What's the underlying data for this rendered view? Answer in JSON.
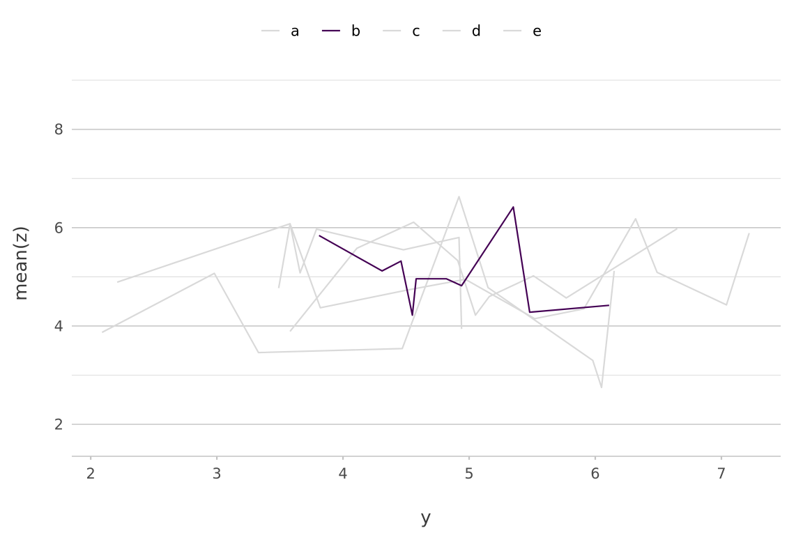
{
  "chart_data": {
    "type": "line",
    "xlabel": "y",
    "ylabel": "mean(z)",
    "xlim": [
      1.85,
      7.47
    ],
    "ylim": [
      1.35,
      9.1
    ],
    "xticks": [
      2,
      3,
      4,
      5,
      6,
      7
    ],
    "yticks": [
      2,
      4,
      6,
      8
    ],
    "yminor": [
      3,
      5,
      7,
      9
    ],
    "grid": true,
    "legend_position": "top",
    "highlight_color": "#440154",
    "muted_color": "#d9d9d9",
    "series": [
      {
        "name": "a",
        "highlighted": false,
        "points": [
          [
            3.49,
            4.77
          ],
          [
            3.58,
            6.08
          ],
          [
            3.82,
            4.37
          ],
          [
            4.49,
            4.72
          ],
          [
            4.97,
            4.95
          ],
          [
            5.52,
            4.15
          ],
          [
            5.91,
            4.35
          ],
          [
            6.32,
            6.18
          ],
          [
            6.49,
            5.09
          ],
          [
            7.04,
            4.43
          ],
          [
            7.22,
            5.89
          ]
        ]
      },
      {
        "name": "b",
        "highlighted": true,
        "points": [
          [
            3.81,
            5.84
          ],
          [
            4.31,
            5.12
          ],
          [
            4.46,
            5.32
          ],
          [
            4.55,
            4.22
          ],
          [
            4.58,
            4.96
          ],
          [
            4.82,
            4.96
          ],
          [
            4.94,
            4.82
          ],
          [
            5.35,
            6.42
          ],
          [
            5.48,
            4.28
          ],
          [
            6.11,
            4.42
          ]
        ]
      },
      {
        "name": "c",
        "highlighted": false,
        "points": [
          [
            2.09,
            3.87
          ],
          [
            2.98,
            5.07
          ],
          [
            3.33,
            3.46
          ],
          [
            4.47,
            3.54
          ],
          [
            4.92,
            6.63
          ],
          [
            5.15,
            4.78
          ],
          [
            5.98,
            3.3
          ],
          [
            6.05,
            2.75
          ],
          [
            6.15,
            5.12
          ]
        ]
      },
      {
        "name": "d",
        "highlighted": false,
        "points": [
          [
            2.21,
            4.89
          ],
          [
            3.58,
            6.08
          ],
          [
            3.66,
            5.08
          ],
          [
            3.79,
            5.97
          ],
          [
            4.48,
            5.55
          ],
          [
            4.92,
            5.8
          ],
          [
            4.94,
            3.94
          ]
        ]
      },
      {
        "name": "e",
        "highlighted": false,
        "points": [
          [
            3.58,
            3.89
          ],
          [
            4.11,
            5.58
          ],
          [
            4.56,
            6.11
          ],
          [
            4.91,
            5.33
          ],
          [
            5.05,
            4.22
          ],
          [
            5.16,
            4.6
          ],
          [
            5.51,
            5.02
          ],
          [
            5.77,
            4.57
          ],
          [
            6.65,
            5.98
          ]
        ]
      }
    ]
  }
}
